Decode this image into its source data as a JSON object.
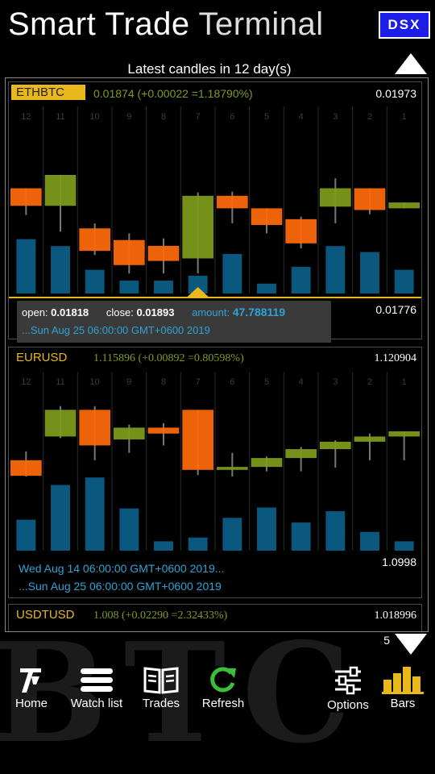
{
  "app": {
    "title_part1": "Smart Trade",
    "title_part2": "Terminal",
    "badge": "DSX"
  },
  "subtitle": "Latest candles in 12 day(s)",
  "page_number": "5",
  "watermark": "BTC",
  "colors": {
    "up": "#7f9c1c",
    "down": "#ff6a0b",
    "volume": "#0c5d86",
    "symbol_gold": "#e8b81c",
    "accent_blue": "#2ea3d6"
  },
  "cards": [
    {
      "symbol": "ETHBTC",
      "change": "0.01874 (+0.00022 =1.18790%)",
      "high": "0.01973",
      "low": "0.01776",
      "date_range_end": "...Sun Aug 25 06:00:00 GMT+0600 2019",
      "selected_info": {
        "open_label": "open:",
        "open": "0.01818",
        "close_label": "close:",
        "close": "0.01893",
        "amount_label": "amount:",
        "amount": "47.788119"
      }
    },
    {
      "symbol": "EURUSD",
      "change": "1.115896 (+0.00892 =0.80598%)",
      "high": "1.120904",
      "low": "1.0998",
      "date_range_start": "Wed Aug 14 06:00:00 GMT+0600 2019...",
      "date_range_end": "...Sun Aug 25 06:00:00 GMT+0600 2019"
    },
    {
      "symbol": "USDTUSD",
      "change": "1.008 (+0.02290 =2.32433%)",
      "high": "1.018996"
    }
  ],
  "chart_data": [
    {
      "type": "candlestick",
      "symbol": "ETHBTC",
      "x": [
        "12",
        "11",
        "10",
        "9",
        "8",
        "7",
        "6",
        "5",
        "4",
        "3",
        "2",
        "1"
      ],
      "ylim": [
        0.01776,
        0.01973
      ],
      "open": [
        0.01902,
        0.01881,
        0.01854,
        0.0184,
        0.01833,
        0.01818,
        0.01893,
        0.01878,
        0.01865,
        0.0188,
        0.01902,
        0.01878
      ],
      "close": [
        0.01881,
        0.01918,
        0.01827,
        0.0181,
        0.01815,
        0.01893,
        0.01878,
        0.01858,
        0.01836,
        0.01902,
        0.01876,
        0.01885
      ],
      "high": [
        0.01902,
        0.01918,
        0.0186,
        0.01848,
        0.01842,
        0.01897,
        0.01898,
        0.01878,
        0.01868,
        0.01914,
        0.01902,
        0.01885
      ],
      "low": [
        0.0187,
        0.0185,
        0.01822,
        0.018,
        0.018,
        0.018,
        0.0186,
        0.01848,
        0.0183,
        0.0186,
        0.01871,
        0.01878
      ],
      "volume": [
        0.55,
        0.48,
        0.24,
        0.13,
        0.13,
        0.18,
        0.4,
        0.1,
        0.27,
        0.48,
        0.42,
        0.24
      ],
      "selected_index": 5
    },
    {
      "type": "candlestick",
      "symbol": "EURUSD",
      "x": [
        "12",
        "11",
        "10",
        "9",
        "8",
        "7",
        "6",
        "5",
        "4",
        "3",
        "2",
        "1"
      ],
      "ylim": [
        1.0998,
        1.120904
      ],
      "open": [
        1.112,
        1.1152,
        1.1188,
        1.1148,
        1.1164,
        1.1188,
        1.1107,
        1.1111,
        1.1123,
        1.1135,
        1.1145,
        1.1152
      ],
      "close": [
        1.1099,
        1.1188,
        1.114,
        1.1164,
        1.1156,
        1.1107,
        1.1111,
        1.1123,
        1.1135,
        1.1145,
        1.1152,
        1.1159
      ],
      "high": [
        1.1132,
        1.1193,
        1.1193,
        1.1168,
        1.117,
        1.1188,
        1.113,
        1.1125,
        1.1138,
        1.1147,
        1.1156,
        1.1159
      ],
      "low": [
        1.1098,
        1.115,
        1.112,
        1.113,
        1.114,
        1.11,
        1.1098,
        1.1105,
        1.1105,
        1.111,
        1.112,
        1.112
      ],
      "volume": [
        0.33,
        0.7,
        0.78,
        0.45,
        0.1,
        0.14,
        0.35,
        0.46,
        0.3,
        0.42,
        0.2,
        0.1
      ]
    }
  ],
  "toolbar": [
    {
      "label": "Home",
      "icon": "home-logo-icon"
    },
    {
      "label": "Watch list",
      "icon": "watch-list-icon"
    },
    {
      "label": "Trades",
      "icon": "trades-icon"
    },
    {
      "label": "Refresh",
      "icon": "refresh-icon"
    },
    {
      "label": "Options",
      "icon": "options-icon"
    },
    {
      "label": "Bars",
      "icon": "bars-icon"
    }
  ]
}
